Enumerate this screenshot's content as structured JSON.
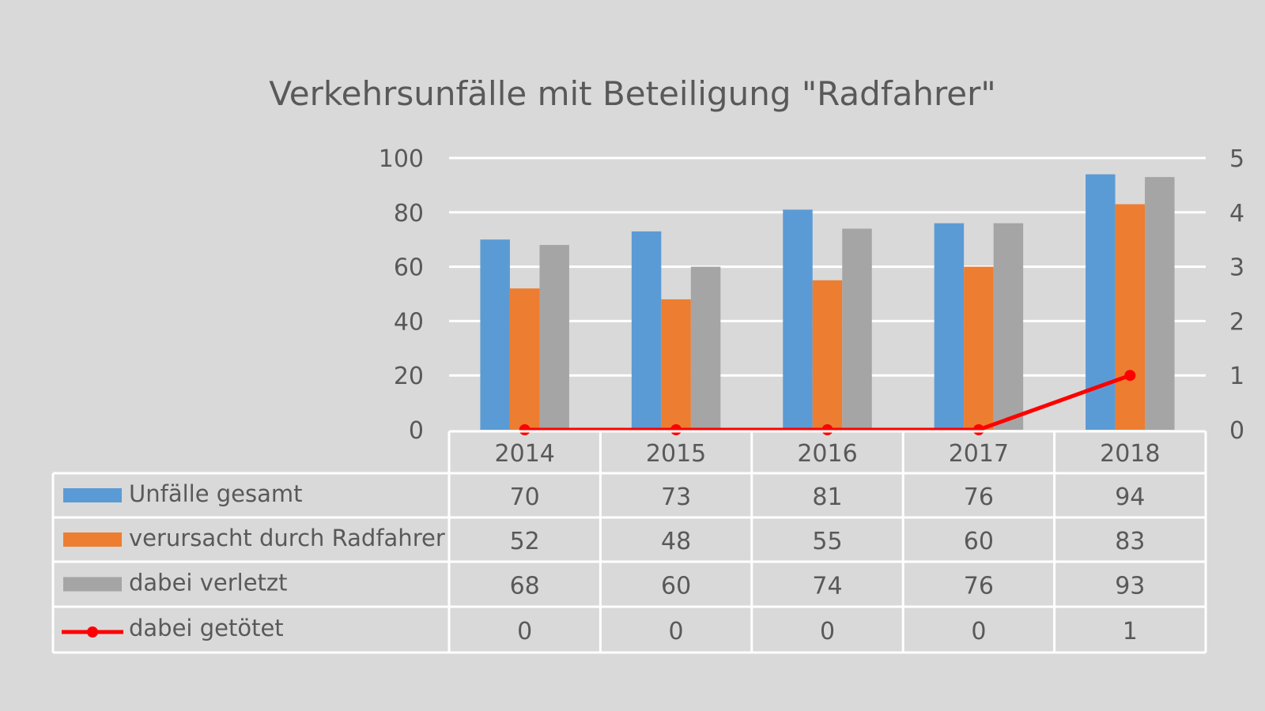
{
  "chart_data": {
    "type": "bar",
    "title": "Verkehrsunfälle mit Beteiligung \"Radfahrer\"",
    "categories": [
      "2014",
      "2015",
      "2016",
      "2017",
      "2018"
    ],
    "series": [
      {
        "name": "Unfälle gesamt",
        "type": "bar",
        "axis": "left",
        "color": "#5b9bd5",
        "values": [
          70,
          73,
          81,
          76,
          94
        ]
      },
      {
        "name": "verursacht durch Radfahrer",
        "type": "bar",
        "axis": "left",
        "color": "#ed7d31",
        "values": [
          52,
          48,
          55,
          60,
          83
        ]
      },
      {
        "name": "dabei verletzt",
        "type": "bar",
        "axis": "left",
        "color": "#a5a5a5",
        "values": [
          68,
          60,
          74,
          76,
          93
        ]
      },
      {
        "name": "dabei getötet",
        "type": "line",
        "axis": "right",
        "color": "#ff0000",
        "values": [
          0,
          0,
          0,
          0,
          1
        ]
      }
    ],
    "y_left": {
      "range": [
        0,
        100
      ],
      "ticks": [
        "0",
        "20",
        "40",
        "60",
        "80",
        "100"
      ]
    },
    "y_right": {
      "range": [
        0,
        5
      ],
      "ticks": [
        "0",
        "1",
        "2",
        "3",
        "4",
        "5"
      ]
    },
    "grid": true,
    "legend": "data-table-below",
    "background": "#d9d9d9"
  }
}
